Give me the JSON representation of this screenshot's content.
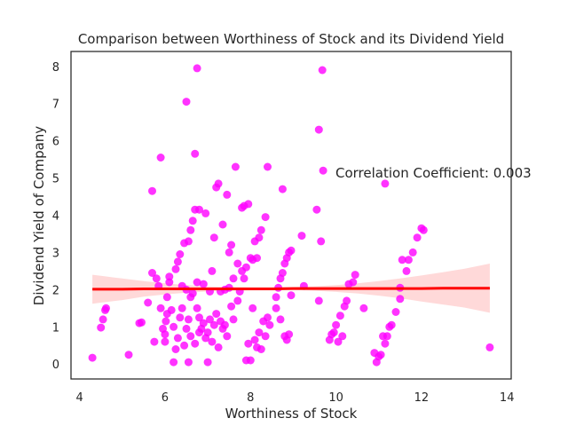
{
  "chart_data": {
    "type": "scatter",
    "title": "Comparison between Worthiness of Stock and its Dividend Yield",
    "xlabel": "Worthiness of Stock",
    "ylabel": "Dividend Yield of Company",
    "xlim": [
      3.8,
      14.1
    ],
    "ylim": [
      -0.4,
      8.4
    ],
    "xticks": [
      4,
      6,
      8,
      10,
      12,
      14
    ],
    "yticks": [
      0,
      1,
      2,
      3,
      4,
      5,
      6,
      7,
      8
    ],
    "grid": false,
    "annotation": "Correlation Coefficient: 0.003",
    "point_color": "#ff00ff",
    "regression": {
      "color": "#ff0000",
      "band_color": "#ffb3b3",
      "x": [
        4.3,
        4.5,
        5,
        5.5,
        6,
        6.5,
        7,
        7.5,
        8,
        8.5,
        9,
        9.5,
        10,
        10.5,
        11,
        11.5,
        12,
        12.5,
        13,
        13.6
      ],
      "y": [
        2.01,
        2.01,
        2.01,
        2.02,
        2.02,
        2.02,
        2.02,
        2.02,
        2.02,
        2.02,
        2.03,
        2.03,
        2.03,
        2.03,
        2.03,
        2.03,
        2.03,
        2.04,
        2.04,
        2.04
      ],
      "ci_upper": [
        2.4,
        2.37,
        2.3,
        2.23,
        2.17,
        2.12,
        2.09,
        2.07,
        2.06,
        2.06,
        2.07,
        2.09,
        2.12,
        2.17,
        2.23,
        2.3,
        2.38,
        2.47,
        2.56,
        2.7
      ],
      "ci_lower": [
        1.62,
        1.65,
        1.72,
        1.81,
        1.87,
        1.92,
        1.95,
        1.97,
        1.98,
        1.98,
        1.99,
        1.97,
        1.94,
        1.9,
        1.84,
        1.77,
        1.68,
        1.6,
        1.52,
        1.38
      ]
    },
    "points": [
      [
        4.3,
        0.17
      ],
      [
        4.5,
        0.98
      ],
      [
        4.55,
        1.2
      ],
      [
        4.6,
        1.45
      ],
      [
        4.62,
        1.5
      ],
      [
        5.15,
        0.25
      ],
      [
        5.4,
        1.1
      ],
      [
        5.45,
        1.12
      ],
      [
        5.6,
        1.65
      ],
      [
        5.7,
        2.45
      ],
      [
        5.7,
        4.65
      ],
      [
        5.8,
        2.3
      ],
      [
        5.85,
        2.1
      ],
      [
        5.9,
        1.5
      ],
      [
        5.9,
        5.55
      ],
      [
        5.75,
        0.6
      ],
      [
        5.95,
        0.95
      ],
      [
        6.0,
        0.8
      ],
      [
        6.0,
        0.6
      ],
      [
        6.02,
        1.15
      ],
      [
        6.05,
        1.35
      ],
      [
        6.05,
        1.8
      ],
      [
        6.1,
        2.2
      ],
      [
        6.1,
        2.35
      ],
      [
        6.15,
        1.45
      ],
      [
        6.2,
        0.05
      ],
      [
        6.2,
        1.0
      ],
      [
        6.25,
        0.4
      ],
      [
        6.25,
        2.55
      ],
      [
        6.3,
        2.75
      ],
      [
        6.3,
        0.7
      ],
      [
        6.35,
        2.95
      ],
      [
        6.35,
        1.25
      ],
      [
        6.4,
        2.1
      ],
      [
        6.4,
        1.5
      ],
      [
        6.45,
        3.25
      ],
      [
        6.45,
        0.5
      ],
      [
        6.5,
        0.95
      ],
      [
        6.5,
        7.05
      ],
      [
        6.5,
        2.0
      ],
      [
        6.55,
        3.3
      ],
      [
        6.55,
        1.2
      ],
      [
        6.55,
        0.05
      ],
      [
        6.6,
        3.6
      ],
      [
        6.6,
        1.8
      ],
      [
        6.6,
        0.75
      ],
      [
        6.65,
        3.85
      ],
      [
        6.65,
        1.9
      ],
      [
        6.7,
        4.15
      ],
      [
        6.7,
        5.65
      ],
      [
        6.7,
        0.55
      ],
      [
        6.75,
        7.95
      ],
      [
        6.75,
        1.5
      ],
      [
        6.75,
        2.2
      ],
      [
        6.8,
        4.15
      ],
      [
        6.8,
        1.25
      ],
      [
        6.8,
        0.85
      ],
      [
        6.85,
        0.95
      ],
      [
        6.9,
        1.1
      ],
      [
        6.9,
        2.15
      ],
      [
        6.95,
        4.05
      ],
      [
        6.95,
        0.7
      ],
      [
        7.0,
        0.05
      ],
      [
        7.0,
        0.85
      ],
      [
        7.05,
        1.2
      ],
      [
        7.05,
        1.95
      ],
      [
        7.1,
        2.5
      ],
      [
        7.1,
        0.6
      ],
      [
        7.15,
        1.05
      ],
      [
        7.15,
        3.4
      ],
      [
        7.2,
        1.35
      ],
      [
        7.2,
        4.75
      ],
      [
        7.25,
        4.85
      ],
      [
        7.25,
        0.45
      ],
      [
        7.3,
        1.15
      ],
      [
        7.3,
        1.95
      ],
      [
        7.35,
        0.95
      ],
      [
        7.35,
        3.75
      ],
      [
        7.4,
        1.05
      ],
      [
        7.4,
        2.0
      ],
      [
        7.45,
        0.75
      ],
      [
        7.45,
        4.55
      ],
      [
        7.5,
        3.0
      ],
      [
        7.5,
        2.05
      ],
      [
        7.55,
        3.2
      ],
      [
        7.55,
        1.55
      ],
      [
        7.6,
        2.3
      ],
      [
        7.6,
        1.2
      ],
      [
        7.65,
        5.3
      ],
      [
        7.7,
        2.7
      ],
      [
        7.7,
        1.7
      ],
      [
        7.75,
        1.95
      ],
      [
        7.8,
        2.5
      ],
      [
        7.8,
        4.2
      ],
      [
        7.85,
        4.25
      ],
      [
        7.85,
        2.3
      ],
      [
        7.9,
        2.6
      ],
      [
        7.9,
        0.1
      ],
      [
        7.95,
        4.3
      ],
      [
        7.95,
        0.55
      ],
      [
        8.0,
        2.85
      ],
      [
        8.0,
        0.1
      ],
      [
        8.05,
        2.8
      ],
      [
        8.05,
        1.5
      ],
      [
        8.1,
        3.3
      ],
      [
        8.1,
        0.65
      ],
      [
        8.15,
        2.85
      ],
      [
        8.15,
        0.45
      ],
      [
        8.2,
        3.4
      ],
      [
        8.2,
        0.85
      ],
      [
        8.25,
        3.6
      ],
      [
        8.25,
        0.4
      ],
      [
        8.3,
        1.15
      ],
      [
        8.35,
        3.95
      ],
      [
        8.35,
        0.75
      ],
      [
        8.4,
        5.3
      ],
      [
        8.4,
        1.25
      ],
      [
        8.45,
        1.05
      ],
      [
        8.6,
        1.5
      ],
      [
        8.6,
        1.8
      ],
      [
        8.65,
        2.05
      ],
      [
        8.7,
        2.3
      ],
      [
        8.7,
        1.2
      ],
      [
        8.75,
        4.7
      ],
      [
        8.75,
        2.45
      ],
      [
        8.8,
        2.7
      ],
      [
        8.8,
        0.75
      ],
      [
        8.85,
        2.85
      ],
      [
        8.85,
        0.65
      ],
      [
        8.9,
        3.0
      ],
      [
        8.9,
        0.8
      ],
      [
        8.95,
        3.05
      ],
      [
        8.95,
        1.85
      ],
      [
        9.2,
        3.45
      ],
      [
        9.25,
        2.1
      ],
      [
        9.55,
        4.15
      ],
      [
        9.6,
        6.3
      ],
      [
        9.6,
        1.7
      ],
      [
        9.65,
        3.3
      ],
      [
        9.68,
        7.9
      ],
      [
        9.7,
        5.2
      ],
      [
        9.85,
        0.65
      ],
      [
        9.9,
        0.8
      ],
      [
        9.95,
        0.85
      ],
      [
        10.0,
        1.05
      ],
      [
        10.05,
        0.6
      ],
      [
        10.1,
        1.3
      ],
      [
        10.15,
        0.75
      ],
      [
        10.2,
        1.55
      ],
      [
        10.25,
        1.7
      ],
      [
        10.3,
        2.15
      ],
      [
        10.4,
        2.2
      ],
      [
        10.45,
        2.4
      ],
      [
        10.65,
        1.5
      ],
      [
        10.9,
        0.3
      ],
      [
        10.95,
        0.05
      ],
      [
        11.0,
        0.2
      ],
      [
        11.05,
        0.25
      ],
      [
        11.1,
        0.75
      ],
      [
        11.15,
        0.55
      ],
      [
        11.2,
        0.75
      ],
      [
        11.15,
        4.85
      ],
      [
        11.25,
        1.0
      ],
      [
        11.3,
        1.05
      ],
      [
        11.4,
        1.4
      ],
      [
        11.5,
        2.05
      ],
      [
        11.5,
        1.75
      ],
      [
        11.55,
        2.8
      ],
      [
        11.65,
        2.5
      ],
      [
        11.7,
        2.8
      ],
      [
        11.8,
        3.0
      ],
      [
        11.9,
        3.4
      ],
      [
        12.0,
        3.65
      ],
      [
        12.05,
        3.6
      ],
      [
        13.6,
        0.45
      ]
    ]
  }
}
